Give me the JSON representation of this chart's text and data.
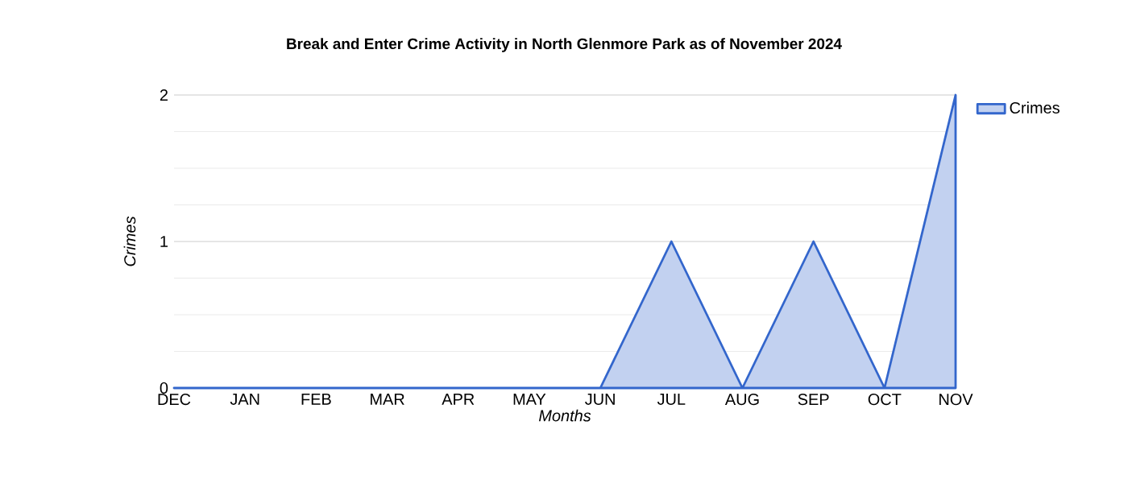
{
  "chart_data": {
    "type": "area",
    "title": "Break and Enter Crime Activity in North Glenmore Park as of November 2024",
    "xlabel": "Months",
    "ylabel": "Crimes",
    "categories": [
      "DEC",
      "JAN",
      "FEB",
      "MAR",
      "APR",
      "MAY",
      "JUN",
      "JUL",
      "AUG",
      "SEP",
      "OCT",
      "NOV"
    ],
    "series": [
      {
        "name": "Crimes",
        "color": "#3366cc",
        "values": [
          0,
          0,
          0,
          0,
          0,
          0,
          0,
          1,
          0,
          1,
          0,
          2
        ]
      }
    ],
    "ylim": [
      0,
      2
    ],
    "yticks": [
      0,
      1,
      2
    ],
    "grid": "y",
    "legend": "top right"
  }
}
